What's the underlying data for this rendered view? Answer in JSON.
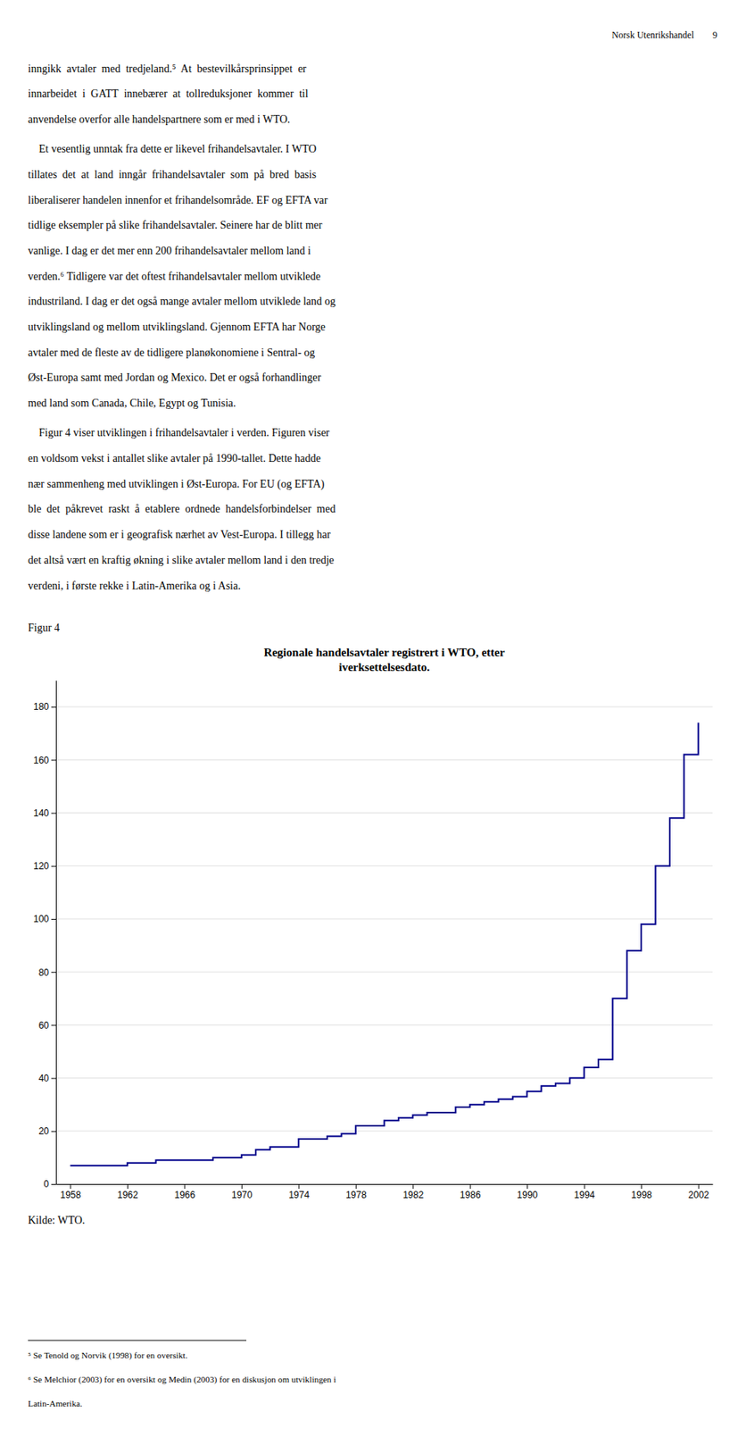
{
  "page_title": "Norsk Utenrikshandel",
  "page_number": "9",
  "p1_lines": [
    "inngikk  avtaler  med  tredjeland.⁵  At  bestevilkårsprinsippet  er",
    "innarbeidet  i  GATT  innebærer  at  tollreduksjoner  kommer  til",
    "anvendelse overfor alle handelspartnere som er med i WTO."
  ],
  "p2_lines": [
    "    Et vesentlig unntak fra dette er likevel frihandelsavtaler. I WTO",
    "tillates  det  at  land  inngår  frihandelsavtaler  som  på  bred  basis",
    "liberaliserer handelen innenfor et frihandelsområde. EF og EFTA var",
    "tidlige eksempler på slike frihandelsavtaler. Seinere har de blitt mer",
    "vanlige. I dag er det mer enn 200 frihandelsavtaler mellom land i",
    "verden.⁶ Tidligere var det oftest frihandelsavtaler mellom utviklede",
    "industriland. I dag er det også mange avtaler mellom utviklede land og",
    "utviklingsland og mellom utviklingsland. Gjennom EFTA har Norge",
    "avtaler med de fleste av de tidligere planøkonomiene i Sentral- og",
    "Øst-Europa samt med Jordan og Mexico. Det er også forhandlinger",
    "med land som Canada, Chile, Egypt og Tunisia."
  ],
  "p3_lines": [
    "    Figur 4 viser utviklingen i frihandelsavtaler i verden. Figuren viser",
    "en voldsom vekst i antallet slike avtaler på 1990-tallet. Dette hadde",
    "nær sammenheng med utviklingen i Øst-Europa. For EU (og EFTA)",
    "ble  det  påkrevet  raskt  å  etablere  ordnede  handelsforbindelser  med",
    "disse landene som er i geografisk nærhet av Vest-Europa. I tillegg har",
    "det altså vært en kraftig økning i slike avtaler mellom land i den tredje",
    "verdeni, i første rekke i Latin-Amerika og i Asia."
  ],
  "figur_label": "Figur 4",
  "source": "Kilde: WTO.",
  "footnotes": [
    "⁵ Se Tenold og Norvik (1998) for en oversikt.",
    "⁶ Se Melchior (2003) for en oversikt og Medin (2003) for en diskusjon om utviklingen i",
    "Latin-Amerika."
  ],
  "chart_data": {
    "type": "step",
    "title": "Regionale handelsavtaler registrert i WTO, etter\niverksettelsesdato.",
    "x": [
      1958,
      1959,
      1960,
      1961,
      1962,
      1963,
      1964,
      1965,
      1966,
      1967,
      1968,
      1969,
      1970,
      1971,
      1972,
      1973,
      1974,
      1975,
      1976,
      1977,
      1978,
      1979,
      1980,
      1981,
      1982,
      1983,
      1984,
      1985,
      1986,
      1987,
      1988,
      1989,
      1990,
      1991,
      1992,
      1993,
      1994,
      1995,
      1996,
      1997,
      1998,
      1999,
      2000,
      2001,
      2002
    ],
    "values": [
      7,
      7,
      7,
      7,
      8,
      8,
      9,
      9,
      9,
      9,
      10,
      10,
      11,
      13,
      14,
      14,
      17,
      17,
      18,
      19,
      22,
      22,
      24,
      25,
      26,
      27,
      27,
      29,
      30,
      31,
      32,
      33,
      35,
      37,
      38,
      40,
      44,
      47,
      70,
      88,
      98,
      120,
      138,
      162,
      174
    ],
    "color": "#00008B",
    "xlim": [
      1957,
      2003
    ],
    "xticks": [
      1958,
      1962,
      1966,
      1970,
      1974,
      1978,
      1982,
      1986,
      1990,
      1994,
      1998,
      2002
    ],
    "ylim": [
      0,
      190
    ],
    "yticks": [
      0,
      20,
      40,
      60,
      80,
      100,
      120,
      140,
      160,
      180
    ],
    "grid": "y"
  }
}
